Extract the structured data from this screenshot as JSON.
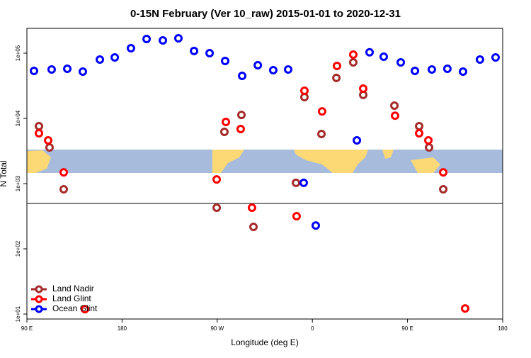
{
  "chart_data": {
    "type": "scatter",
    "title": "0-15N February (Ver 10_raw)   2015-01-01 to 2020-12-31",
    "x_label": "Longitude (deg E)",
    "y_label": "N Total",
    "log_y": true,
    "legend": "bottom-left",
    "xlim": [
      90,
      540
    ],
    "xticks": [
      {
        "value": 90,
        "label": "90 E"
      },
      {
        "value": 180,
        "label": "180"
      },
      {
        "value": 270,
        "label": "90 W"
      },
      {
        "value": 360,
        "label": "0"
      },
      {
        "value": 450,
        "label": "90 E"
      },
      {
        "value": 540,
        "label": "180"
      }
    ],
    "ylim": [
      8.4,
      240000
    ],
    "yticks": [
      {
        "value": 10,
        "label": "1e+01"
      },
      {
        "value": 100,
        "label": "1e+02"
      },
      {
        "value": 1000,
        "label": "1e+03"
      },
      {
        "value": 10000,
        "label": "1e+04"
      },
      {
        "value": 100000,
        "label": "1e+05"
      }
    ],
    "series": [
      {
        "name": "Land Nadir",
        "color": "#a52a2a",
        "x": [
          101.4,
          111.4,
          124.8,
          269.5,
          276.8,
          292.9,
          304.3,
          344.5,
          352.5,
          368.6,
          382.7,
          398.7,
          408.1,
          437.6,
          461.0,
          470.4,
          483.8
        ],
        "values": [
          7590,
          3580,
          819,
          427,
          6210,
          11300,
          217,
          1030,
          21200,
          5770,
          41700,
          72300,
          22900,
          15700,
          7590,
          3580,
          819
        ]
      },
      {
        "name": "Land Glint",
        "color": "#ff0000",
        "x": [
          101.4,
          110.1,
          124.8,
          144.9,
          269.5,
          278.2,
          292.2,
          302.9,
          345.1,
          352.5,
          369.2,
          383.3,
          398.7,
          408.1,
          438.2,
          461.0,
          469.7,
          483.8,
          504.5
        ],
        "values": [
          5910,
          4600,
          1490,
          11.9,
          1160,
          8830,
          6870,
          427,
          316,
          26500,
          12800,
          63700,
          95100,
          28600,
          11000,
          5910,
          4600,
          1490,
          12.2
        ]
      },
      {
        "name": "Ocean Glint",
        "color": "#0000ff",
        "x": [
          96.7,
          113.4,
          128.2,
          142.9,
          159.0,
          173.1,
          188.4,
          203.2,
          218.6,
          233.3,
          248.1,
          262.8,
          277.5,
          293.6,
          308.4,
          323.0,
          337.1,
          351.8,
          363.2,
          402.1,
          414.1,
          427.5,
          443.6,
          457.0,
          473.0,
          487.7,
          502.5,
          518.5,
          533.3
        ],
        "values": [
          53500,
          56200,
          57600,
          52200,
          79800,
          86100,
          119000,
          165000,
          157000,
          169000,
          108000,
          100000,
          75900,
          44900,
          65300,
          54800,
          56200,
          1030,
          228,
          4600,
          103000,
          88300,
          72300,
          53500,
          56200,
          57600,
          52200,
          79800,
          86100
        ]
      }
    ]
  }
}
